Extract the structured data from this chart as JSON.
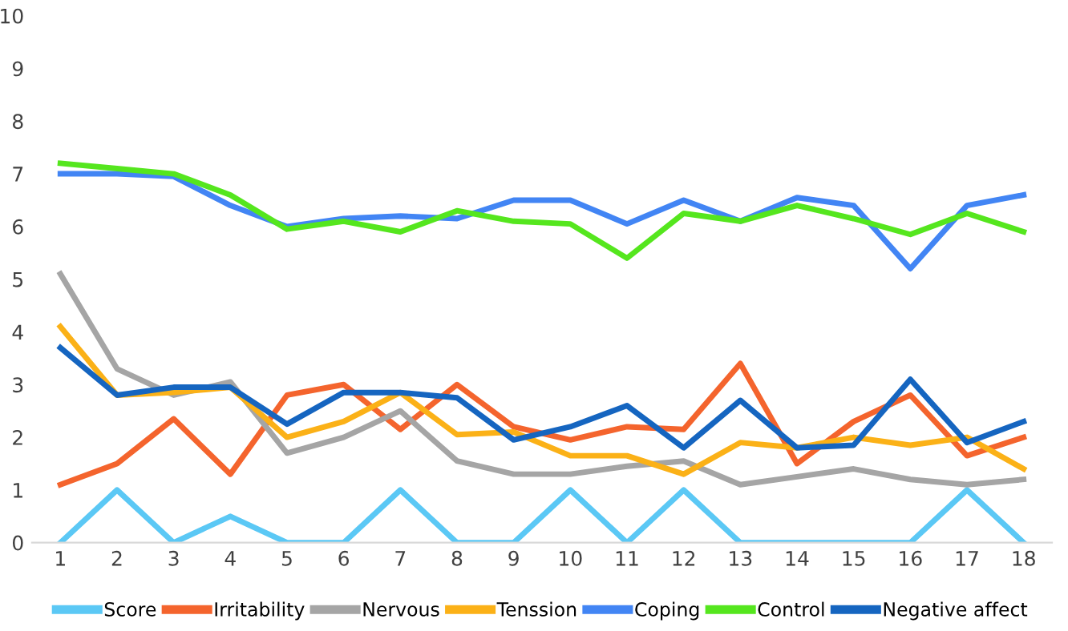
{
  "chart_data": {
    "type": "line",
    "categories": [
      "1",
      "2",
      "3",
      "4",
      "5",
      "6",
      "7",
      "8",
      "9",
      "10",
      "11",
      "12",
      "13",
      "14",
      "15",
      "16",
      "17",
      "18"
    ],
    "ylim": [
      0,
      10
    ],
    "yticks": [
      0,
      1,
      2,
      3,
      4,
      5,
      6,
      7,
      8,
      9,
      10
    ],
    "grid": false,
    "legend": "bottom",
    "marker": "none",
    "line_style": "solid",
    "series": [
      {
        "name": "Score",
        "color": "#5bc8f5",
        "values": [
          0,
          1,
          0,
          0.5,
          0,
          0,
          1,
          0,
          0,
          1,
          0,
          1,
          0,
          0,
          0,
          0,
          1,
          0
        ]
      },
      {
        "name": "Irritability",
        "color": "#f4642d",
        "values": [
          1.1,
          1.5,
          2.35,
          1.3,
          2.8,
          3.0,
          2.15,
          3.0,
          2.2,
          1.95,
          2.2,
          2.15,
          3.4,
          1.5,
          2.3,
          2.8,
          1.65,
          2.0
        ]
      },
      {
        "name": "Nervous",
        "color": "#a5a5a5",
        "values": [
          5.1,
          3.3,
          2.8,
          3.05,
          1.7,
          2.0,
          2.5,
          1.55,
          1.3,
          1.3,
          1.45,
          1.55,
          1.1,
          1.25,
          1.4,
          1.2,
          1.1,
          1.2
        ]
      },
      {
        "name": "Tenssion",
        "color": "#fbb117",
        "values": [
          4.1,
          2.8,
          2.85,
          2.95,
          2.0,
          2.3,
          2.85,
          2.05,
          2.1,
          1.65,
          1.65,
          1.3,
          1.9,
          1.8,
          2.0,
          1.85,
          2.0,
          1.4
        ]
      },
      {
        "name": "Coping",
        "color": "#4285f4",
        "values": [
          7.0,
          7.0,
          6.95,
          6.4,
          6.0,
          6.15,
          6.2,
          6.15,
          6.5,
          6.5,
          6.05,
          6.5,
          6.1,
          6.55,
          6.4,
          5.2,
          6.4,
          6.6
        ]
      },
      {
        "name": "Control",
        "color": "#55e61e",
        "values": [
          7.2,
          7.1,
          7.0,
          6.6,
          5.95,
          6.1,
          5.9,
          6.3,
          6.1,
          6.05,
          5.4,
          6.25,
          6.1,
          6.4,
          6.15,
          5.85,
          6.25,
          5.9
        ]
      },
      {
        "name": "Negative affect",
        "color": "#1565c0",
        "values": [
          3.7,
          2.8,
          2.95,
          2.95,
          2.25,
          2.85,
          2.85,
          2.75,
          1.95,
          2.2,
          2.6,
          1.8,
          2.7,
          1.8,
          1.85,
          3.1,
          1.9,
          2.3
        ]
      }
    ]
  }
}
